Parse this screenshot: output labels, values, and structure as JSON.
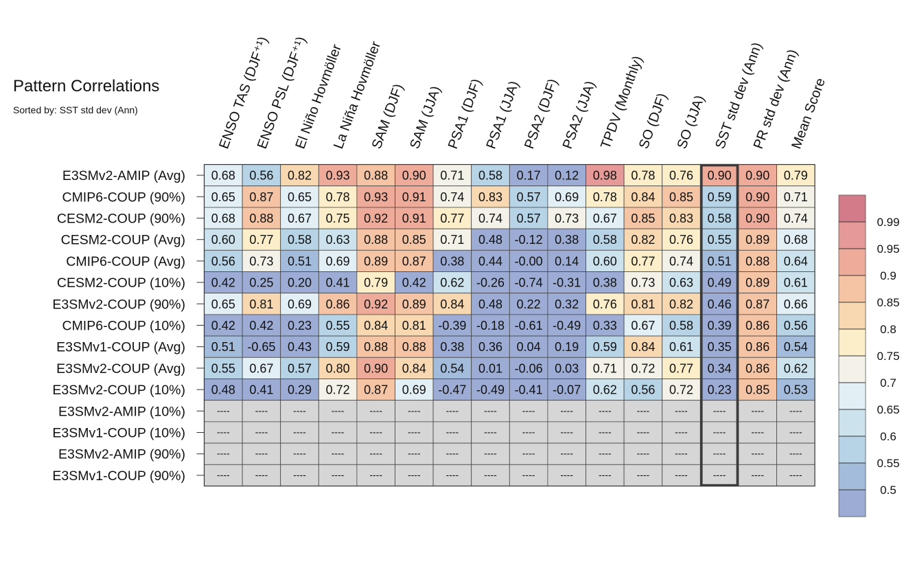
{
  "title": "Pattern Correlations",
  "subtitle": "Sorted by: SST std dev (Ann)",
  "missing_label": "----",
  "highlight_column": "SST std dev (Ann)",
  "chart_data": {
    "type": "heatmap",
    "columns": [
      "ENSO TAS (DJF⁺¹)",
      "ENSO PSL (DJF⁺¹)",
      "El Niño Hovmöller",
      "La Niña Hovmöller",
      "SAM (DJF)",
      "SAM (JJA)",
      "PSA1 (DJF)",
      "PSA1 (JJA)",
      "PSA2 (DJF)",
      "PSA2 (JJA)",
      "TPDV (Monthly)",
      "SO (DJF)",
      "SO (JJA)",
      "SST std dev (Ann)",
      "PR std dev (Ann)",
      "Mean Score"
    ],
    "rows": [
      "E3SMv2-AMIP (Avg)",
      "CMIP6-COUP (90%)",
      "CESM2-COUP (90%)",
      "CESM2-COUP (Avg)",
      "CMIP6-COUP (Avg)",
      "CESM2-COUP (10%)",
      "E3SMv2-COUP (90%)",
      "CMIP6-COUP (10%)",
      "E3SMv1-COUP (Avg)",
      "E3SMv2-COUP (Avg)",
      "E3SMv2-COUP (10%)",
      "E3SMv2-AMIP (10%)",
      "E3SMv1-COUP (10%)",
      "E3SMv2-AMIP (90%)",
      "E3SMv1-COUP (90%)"
    ],
    "values": [
      [
        "0.68",
        "0.56",
        "0.82",
        "0.93",
        "0.88",
        "0.90",
        "0.71",
        "0.58",
        "0.17",
        "0.12",
        "0.98",
        "0.78",
        "0.76",
        "0.90",
        "0.90",
        "0.79"
      ],
      [
        "0.65",
        "0.87",
        "0.65",
        "0.78",
        "0.93",
        "0.91",
        "0.74",
        "0.83",
        "0.57",
        "0.69",
        "0.78",
        "0.84",
        "0.85",
        "0.59",
        "0.90",
        "0.71"
      ],
      [
        "0.68",
        "0.88",
        "0.67",
        "0.75",
        "0.92",
        "0.91",
        "0.77",
        "0.74",
        "0.57",
        "0.73",
        "0.67",
        "0.85",
        "0.83",
        "0.58",
        "0.90",
        "0.74"
      ],
      [
        "0.60",
        "0.77",
        "0.58",
        "0.63",
        "0.88",
        "0.85",
        "0.71",
        "0.48",
        "-0.12",
        "0.38",
        "0.58",
        "0.82",
        "0.76",
        "0.55",
        "0.89",
        "0.68"
      ],
      [
        "0.56",
        "0.73",
        "0.51",
        "0.69",
        "0.89",
        "0.87",
        "0.38",
        "0.44",
        "-0.00",
        "0.14",
        "0.60",
        "0.77",
        "0.74",
        "0.51",
        "0.88",
        "0.64"
      ],
      [
        "0.42",
        "0.25",
        "0.20",
        "0.41",
        "0.79",
        "0.42",
        "0.62",
        "-0.26",
        "-0.74",
        "-0.31",
        "0.38",
        "0.73",
        "0.63",
        "0.49",
        "0.89",
        "0.61"
      ],
      [
        "0.65",
        "0.81",
        "0.69",
        "0.86",
        "0.92",
        "0.89",
        "0.84",
        "0.48",
        "0.22",
        "0.32",
        "0.76",
        "0.81",
        "0.82",
        "0.46",
        "0.87",
        "0.66"
      ],
      [
        "0.42",
        "0.42",
        "0.23",
        "0.55",
        "0.84",
        "0.81",
        "-0.39",
        "-0.18",
        "-0.61",
        "-0.49",
        "0.33",
        "0.67",
        "0.58",
        "0.39",
        "0.86",
        "0.56"
      ],
      [
        "0.51",
        "-0.65",
        "0.43",
        "0.59",
        "0.88",
        "0.88",
        "0.38",
        "0.36",
        "0.04",
        "0.19",
        "0.59",
        "0.84",
        "0.61",
        "0.35",
        "0.86",
        "0.54"
      ],
      [
        "0.55",
        "0.67",
        "0.57",
        "0.80",
        "0.90",
        "0.84",
        "0.54",
        "0.01",
        "-0.06",
        "0.03",
        "0.71",
        "0.72",
        "0.77",
        "0.34",
        "0.86",
        "0.62"
      ],
      [
        "0.48",
        "0.41",
        "0.29",
        "0.72",
        "0.87",
        "0.69",
        "-0.47",
        "-0.49",
        "-0.41",
        "-0.07",
        "0.62",
        "0.56",
        "0.72",
        "0.23",
        "0.85",
        "0.53"
      ],
      [
        null,
        null,
        null,
        null,
        null,
        null,
        null,
        null,
        null,
        null,
        null,
        null,
        null,
        null,
        null,
        null
      ],
      [
        null,
        null,
        null,
        null,
        null,
        null,
        null,
        null,
        null,
        null,
        null,
        null,
        null,
        null,
        null,
        null
      ],
      [
        null,
        null,
        null,
        null,
        null,
        null,
        null,
        null,
        null,
        null,
        null,
        null,
        null,
        null,
        null,
        null
      ],
      [
        null,
        null,
        null,
        null,
        null,
        null,
        null,
        null,
        null,
        null,
        null,
        null,
        null,
        null,
        null,
        null
      ]
    ],
    "colorbar": {
      "ticks": [
        "0.99",
        "0.95",
        "0.9",
        "0.85",
        "0.8",
        "0.75",
        "0.7",
        "0.65",
        "0.6",
        "0.55",
        "0.5"
      ],
      "colors": [
        "#d47b8a",
        "#e69a97",
        "#eeab9a",
        "#f4c4a4",
        "#f8d8b0",
        "#fbeec8",
        "#f4f2e8",
        "#e2eff5",
        "#cce3ee",
        "#b7d3e6",
        "#a3bcdc",
        "#9cacd4"
      ],
      "missing_color": "#d6d6d6"
    }
  }
}
